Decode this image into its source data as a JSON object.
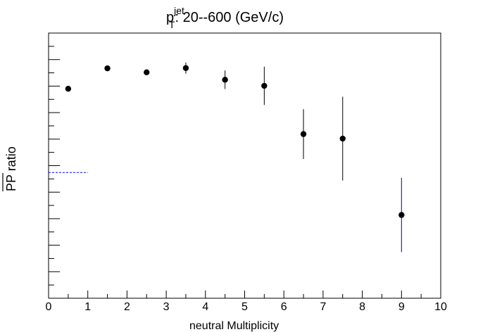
{
  "chart_data": {
    "type": "scatter",
    "title": {
      "symbol": "p",
      "superscript": "jet",
      "subscript": "T",
      "text": ":  20--600 (GeV/c)"
    },
    "xlabel": "neutral Multiplicity",
    "ylabel": {
      "overlined": "PP",
      "text": " ratio"
    },
    "xlim": [
      0,
      10
    ],
    "ylim": [
      0,
      1
    ],
    "x_ticks": [
      "0",
      "1",
      "2",
      "3",
      "4",
      "5",
      "6",
      "7",
      "8",
      "9",
      "10"
    ],
    "y_tick_labels_shown": false,
    "reference_line": {
      "y": 0.474,
      "x_range": [
        0,
        1
      ],
      "color": "#0000ff",
      "style": "dashed"
    },
    "series": [
      {
        "marker_color": "#000000",
        "points": [
          {
            "x": 0.5,
            "y": 0.79,
            "err": 0.0
          },
          {
            "x": 1.5,
            "y": 0.867,
            "err": 0.0
          },
          {
            "x": 2.5,
            "y": 0.852,
            "err": 0.0
          },
          {
            "x": 3.5,
            "y": 0.868,
            "err": 0.021
          },
          {
            "x": 4.5,
            "y": 0.824,
            "err": 0.035
          },
          {
            "x": 5.5,
            "y": 0.801,
            "err": 0.072
          },
          {
            "x": 6.5,
            "y": 0.619,
            "err": 0.094
          },
          {
            "x": 7.5,
            "y": 0.602,
            "err": 0.158
          },
          {
            "x": 9.0,
            "y": 0.314,
            "err": 0.14,
            "err_color": "#000080"
          }
        ]
      }
    ],
    "grid": false,
    "legend": "none"
  }
}
